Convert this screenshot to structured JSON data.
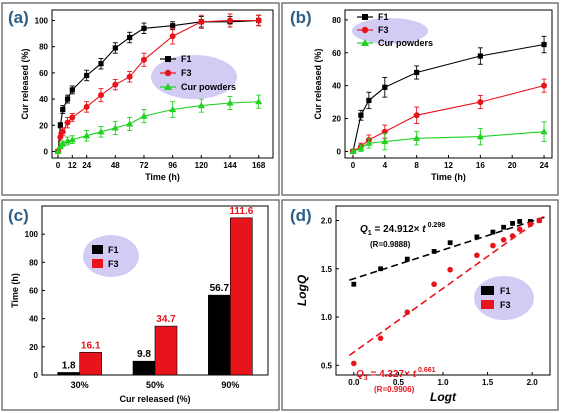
{
  "colors": {
    "f1": "#000000",
    "f3": "#e8141c",
    "cur": "#1fd21f",
    "legend_bubble": "#d2ccf4",
    "panel_label": "#2e5f86",
    "panel_border": "#555555"
  },
  "chart_data": [
    {
      "panel": "(a)",
      "type": "line",
      "xlabel": "Time (h)",
      "ylabel": "Cur released (%)",
      "xlim": [
        -5,
        180
      ],
      "ylim": [
        -5,
        108
      ],
      "xticks": [
        0,
        12,
        24,
        48,
        72,
        96,
        120,
        144,
        168
      ],
      "yticks": [
        0,
        20,
        40,
        60,
        80,
        100
      ],
      "legend_position": "center-right",
      "series": [
        {
          "name": "F1",
          "marker": "square",
          "color": "#000000",
          "x": [
            0,
            2,
            4,
            8,
            12,
            24,
            36,
            48,
            60,
            72,
            96,
            120,
            144,
            168
          ],
          "y": [
            0,
            20,
            32,
            40,
            47,
            58,
            67,
            79,
            87,
            94,
            96,
            99,
            99,
            100
          ],
          "err": [
            0,
            2,
            3,
            3,
            3,
            4,
            4,
            4,
            4,
            4,
            3,
            4,
            4,
            4
          ]
        },
        {
          "name": "F3",
          "marker": "circle",
          "color": "#e8141c",
          "x": [
            0,
            2,
            4,
            8,
            12,
            24,
            36,
            48,
            60,
            72,
            96,
            120,
            144,
            168
          ],
          "y": [
            0,
            11,
            15,
            22,
            26,
            34,
            43,
            51,
            57,
            70,
            88,
            99,
            100,
            100
          ],
          "err": [
            0,
            3,
            3,
            4,
            3,
            4,
            5,
            4,
            4,
            5,
            6,
            5,
            5,
            4
          ]
        },
        {
          "name": "Cur powders",
          "marker": "triangle",
          "color": "#1fd21f",
          "x": [
            0,
            2,
            4,
            8,
            12,
            24,
            36,
            48,
            60,
            72,
            96,
            120,
            144,
            168
          ],
          "y": [
            0,
            4,
            6,
            8,
            9,
            12,
            15,
            18,
            21,
            27,
            32,
            35,
            37,
            38
          ],
          "err": [
            0,
            2,
            2,
            3,
            3,
            4,
            4,
            5,
            5,
            5,
            6,
            5,
            5,
            5
          ]
        }
      ]
    },
    {
      "panel": "(b)",
      "type": "line",
      "xlabel": "Time (h)",
      "ylabel": "Cur released (%)",
      "xlim": [
        -1,
        25
      ],
      "ylim": [
        -4,
        86
      ],
      "xticks": [
        0,
        4,
        8,
        12,
        16,
        20,
        24
      ],
      "yticks": [
        0,
        20,
        40,
        60,
        80
      ],
      "legend_position": "top-left",
      "series": [
        {
          "name": "F1",
          "marker": "square",
          "color": "#000000",
          "x": [
            0,
            1,
            2,
            4,
            8,
            16,
            24
          ],
          "y": [
            0,
            22,
            31,
            39,
            48,
            58,
            65
          ],
          "err": [
            0,
            3,
            5,
            6,
            4,
            5,
            5
          ]
        },
        {
          "name": "F3",
          "marker": "circle",
          "color": "#e8141c",
          "x": [
            0,
            1,
            2,
            4,
            8,
            16,
            24
          ],
          "y": [
            0,
            3,
            7,
            12,
            22,
            30,
            40
          ],
          "err": [
            0,
            2,
            3,
            4,
            5,
            4,
            4
          ]
        },
        {
          "name": "Cur powders",
          "marker": "triangle",
          "color": "#1fd21f",
          "x": [
            0,
            1,
            2,
            4,
            8,
            16,
            24
          ],
          "y": [
            0,
            2,
            5,
            6,
            8,
            9,
            12
          ],
          "err": [
            0,
            2,
            3,
            5,
            4,
            5,
            6
          ]
        }
      ]
    },
    {
      "panel": "(c)",
      "type": "bar",
      "xlabel": "Cur released (%)",
      "ylabel": "Time (h)",
      "ylim": [
        0,
        120
      ],
      "yticks": [
        0,
        20,
        40,
        60,
        80,
        100
      ],
      "categories": [
        "30%",
        "50%",
        "90%"
      ],
      "legend_position": "top-left",
      "series": [
        {
          "name": "F1",
          "color": "#000000",
          "values": [
            1.8,
            9.8,
            56.7
          ],
          "labels": [
            "1.8",
            "9.8",
            "56.7"
          ]
        },
        {
          "name": "F3",
          "color": "#e8141c",
          "values": [
            16.1,
            34.7,
            111.6
          ],
          "labels": [
            "16.1",
            "34.7",
            "111.6"
          ]
        }
      ]
    },
    {
      "panel": "(d)",
      "type": "scatter",
      "xlabel": "Logt",
      "ylabel": "LogQ",
      "xlim": [
        -0.2,
        2.2
      ],
      "ylim": [
        0.4,
        2.15
      ],
      "xticks": [
        "0.0",
        "0.5",
        "1.0",
        "1.5",
        "2.0"
      ],
      "yticks": [
        "0.5",
        "1.0",
        "1.5",
        "2.0"
      ],
      "legend_position": "bottom-right",
      "series": [
        {
          "name": "F1",
          "marker": "square",
          "color": "#000000",
          "x": [
            0.0,
            0.3,
            0.6,
            0.9,
            1.08,
            1.38,
            1.56,
            1.68,
            1.78,
            1.86,
            1.98,
            2.08
          ],
          "y": [
            1.34,
            1.5,
            1.6,
            1.68,
            1.77,
            1.83,
            1.88,
            1.93,
            1.97,
            1.99,
            1.99,
            2.0
          ],
          "fit_slope": 0.298,
          "fit_intercept": 1.397,
          "equation": "Q1 = 24.912× t 0.298",
          "r_label": "(R=0.9888)"
        },
        {
          "name": "F3",
          "marker": "circle",
          "color": "#e8141c",
          "x": [
            0.0,
            0.3,
            0.6,
            0.9,
            1.08,
            1.38,
            1.56,
            1.68,
            1.78,
            1.86,
            1.98,
            2.08
          ],
          "y": [
            0.52,
            0.78,
            1.05,
            1.34,
            1.49,
            1.64,
            1.74,
            1.8,
            1.84,
            1.91,
            1.96,
            2.0
          ],
          "fit_slope": 0.661,
          "fit_intercept": 0.636,
          "equation": "Q3 = 4.327× t 0.661",
          "r_label": "(R=0.9906)"
        }
      ]
    }
  ]
}
